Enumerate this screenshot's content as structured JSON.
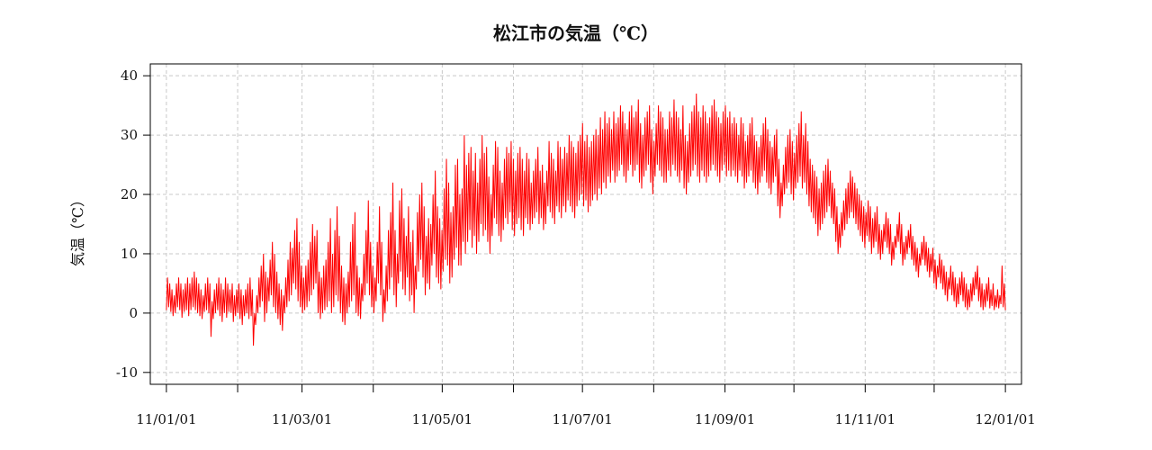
{
  "chart_data": {
    "type": "line",
    "title": "松江市の気温（℃）",
    "ylabel": "気温（℃）",
    "xlabel": "",
    "ylim": [
      -12,
      42
    ],
    "yticks": [
      -10,
      0,
      10,
      20,
      30,
      40
    ],
    "ytick_labels": [
      "-10",
      "0",
      "10",
      "20",
      "30",
      "40"
    ],
    "x_ticks": [
      {
        "date": "2011-01-01",
        "label": "11/01/01"
      },
      {
        "date": "2011-02-01",
        "label": ""
      },
      {
        "date": "2011-03-01",
        "label": "11/03/01"
      },
      {
        "date": "2011-04-01",
        "label": ""
      },
      {
        "date": "2011-05-01",
        "label": "11/05/01"
      },
      {
        "date": "2011-06-01",
        "label": ""
      },
      {
        "date": "2011-07-01",
        "label": "11/07/01"
      },
      {
        "date": "2011-08-01",
        "label": ""
      },
      {
        "date": "2011-09-01",
        "label": "11/09/01"
      },
      {
        "date": "2011-10-01",
        "label": ""
      },
      {
        "date": "2011-11-01",
        "label": "11/11/01"
      },
      {
        "date": "2011-12-01",
        "label": ""
      },
      {
        "date": "2012-01-01",
        "label": "12/01/01"
      }
    ],
    "xlim": [
      "2010-12-25",
      "2012-01-08"
    ],
    "grid": true,
    "series": [
      {
        "color": "#ff0000",
        "x_start": "2011-01-01",
        "x_end": "2012-01-01",
        "daily_min": [
          0.5,
          1,
          0.2,
          -0.5,
          0,
          1,
          0.5,
          -0.8,
          0.2,
          0.5,
          -0.5,
          0.5,
          1,
          0.5,
          0,
          -0.5,
          -1,
          0.2,
          0.5,
          0,
          -4,
          -1,
          0,
          0.5,
          -0.5,
          -1.5,
          0,
          -0.8,
          0.2,
          0,
          -1.5,
          -0.5,
          0,
          -1,
          -2,
          -0.5,
          0,
          -1,
          -0.5,
          -5.5,
          -2,
          0,
          1,
          2,
          -1.5,
          0,
          2,
          3,
          1,
          0,
          -1,
          -2,
          -3,
          0,
          1,
          2,
          3,
          5,
          4,
          2,
          1,
          0,
          0.5,
          1,
          2,
          3,
          4,
          5,
          0,
          -1,
          0,
          0.5,
          1,
          2,
          0,
          1,
          3,
          2,
          0,
          -1.5,
          -2,
          0,
          1,
          2,
          3,
          0,
          -0.5,
          -1,
          2,
          3,
          5,
          3,
          1,
          0,
          2,
          5,
          3,
          -1.5,
          0,
          2,
          4,
          6,
          3,
          1,
          5,
          7,
          4,
          3,
          6,
          2,
          3,
          0,
          4,
          7,
          9,
          6,
          3,
          5,
          4,
          8,
          10,
          6,
          5,
          4,
          7,
          9,
          8,
          5,
          6,
          9,
          11,
          8,
          8,
          12,
          10,
          12,
          14,
          11,
          13,
          10,
          12,
          15,
          13,
          14,
          12,
          10,
          13,
          16,
          15,
          13,
          12,
          14,
          16,
          15,
          17,
          14,
          13,
          15,
          16,
          14,
          13,
          16,
          15,
          14,
          15,
          16,
          17,
          15,
          16,
          14,
          15,
          18,
          17,
          16,
          15,
          18,
          17,
          16,
          18,
          17,
          19,
          18,
          17,
          16,
          18,
          19,
          20,
          18,
          19,
          17,
          18,
          19,
          20,
          19,
          21,
          20,
          22,
          21,
          23,
          22,
          24,
          22,
          23,
          24,
          25,
          23,
          22,
          24,
          25,
          23,
          24,
          25,
          22,
          21,
          23,
          24,
          25,
          22,
          20,
          23,
          25,
          24,
          23,
          22,
          22,
          24,
          23,
          25,
          24,
          23,
          22,
          24,
          21,
          20,
          22,
          23,
          24,
          25,
          23,
          22,
          24,
          23,
          22,
          23,
          24,
          25,
          24,
          23,
          22,
          24,
          25,
          23,
          24,
          23,
          24,
          23,
          22,
          24,
          23,
          21,
          22,
          23,
          24,
          22,
          21,
          20,
          22,
          23,
          24,
          22,
          21,
          20,
          22,
          23,
          18,
          16,
          18,
          20,
          21,
          22,
          20,
          19,
          21,
          22,
          23,
          21,
          22,
          20,
          18,
          17,
          16,
          15,
          13,
          14,
          15,
          16,
          17,
          18,
          16,
          15,
          12,
          10,
          11,
          13,
          14,
          15,
          16,
          17,
          16,
          15,
          14,
          13,
          12,
          11,
          13,
          12,
          10,
          11,
          12,
          10,
          9,
          10,
          12,
          11,
          10,
          8,
          9,
          11,
          12,
          10,
          8,
          9,
          10,
          11,
          9,
          8,
          7,
          6,
          8,
          9,
          8,
          7,
          6,
          7,
          5,
          4,
          6,
          5,
          4,
          3,
          2,
          4,
          3,
          2,
          1,
          1.5,
          3,
          2,
          1,
          0.5,
          1,
          2,
          3,
          4,
          2,
          1,
          0.5,
          1,
          2,
          0.8,
          1.2,
          0.5,
          1,
          0.8,
          1.5,
          1,
          0.5
        ],
        "daily_max": [
          6,
          5,
          4,
          3,
          5,
          6,
          5,
          4,
          5,
          6,
          5,
          6,
          7,
          6,
          5,
          4,
          3,
          5,
          6,
          5,
          2,
          4,
          5,
          6,
          5,
          4,
          6,
          5,
          4,
          5,
          3,
          4,
          5,
          4,
          3,
          4,
          5,
          6,
          4,
          0,
          3,
          6,
          8,
          10,
          7,
          6,
          9,
          12,
          10,
          7,
          5,
          4,
          3,
          6,
          9,
          12,
          11,
          14,
          16,
          12,
          8,
          6,
          8,
          9,
          12,
          15,
          13,
          14,
          7,
          6,
          8,
          9,
          12,
          16,
          10,
          14,
          18,
          13,
          8,
          6,
          5,
          7,
          12,
          15,
          17,
          8,
          6,
          5,
          10,
          14,
          19,
          12,
          8,
          6,
          12,
          18,
          12,
          4,
          8,
          14,
          17,
          22,
          14,
          10,
          19,
          21,
          16,
          13,
          18,
          12,
          14,
          8,
          17,
          20,
          22,
          18,
          13,
          16,
          15,
          20,
          24,
          18,
          16,
          14,
          21,
          26,
          22,
          17,
          18,
          25,
          26,
          20,
          21,
          30,
          25,
          27,
          28,
          24,
          27,
          22,
          26,
          30,
          27,
          28,
          23,
          20,
          25,
          29,
          28,
          24,
          22,
          26,
          28,
          27,
          29,
          26,
          24,
          27,
          28,
          26,
          24,
          27,
          26,
          22,
          24,
          26,
          28,
          24,
          25,
          22,
          24,
          29,
          27,
          26,
          24,
          29,
          28,
          26,
          28,
          27,
          30,
          29,
          28,
          27,
          29,
          30,
          32,
          29,
          30,
          28,
          29,
          30,
          31,
          30,
          33,
          31,
          34,
          32,
          33,
          31,
          34,
          32,
          33,
          35,
          34,
          32,
          31,
          34,
          35,
          33,
          34,
          36,
          32,
          30,
          33,
          34,
          35,
          31,
          29,
          32,
          35,
          34,
          33,
          31,
          31,
          34,
          33,
          36,
          34,
          33,
          31,
          35,
          30,
          29,
          32,
          34,
          35,
          37,
          34,
          33,
          35,
          34,
          32,
          33,
          35,
          36,
          34,
          33,
          32,
          34,
          35,
          33,
          34,
          32,
          33,
          32,
          30,
          33,
          32,
          29,
          30,
          32,
          33,
          30,
          29,
          28,
          30,
          32,
          33,
          31,
          29,
          28,
          30,
          31,
          26,
          22,
          25,
          28,
          30,
          31,
          29,
          27,
          30,
          32,
          34,
          30,
          32,
          29,
          26,
          25,
          24,
          23,
          21,
          22,
          24,
          25,
          26,
          24,
          22,
          21,
          18,
          15,
          17,
          19,
          21,
          22,
          24,
          23,
          22,
          21,
          20,
          19,
          18,
          17,
          19,
          18,
          16,
          17,
          18,
          15,
          14,
          15,
          17,
          16,
          15,
          12,
          13,
          15,
          17,
          15,
          12,
          13,
          14,
          15,
          13,
          12,
          11,
          10,
          12,
          13,
          12,
          11,
          10,
          11,
          9,
          8,
          10,
          9,
          8,
          7,
          6,
          8,
          7,
          6,
          5,
          6,
          7,
          6,
          5,
          4,
          5,
          6,
          7,
          8,
          6,
          5,
          4,
          5,
          6,
          4,
          5,
          3,
          4,
          3,
          8,
          5,
          3
        ]
      }
    ]
  }
}
